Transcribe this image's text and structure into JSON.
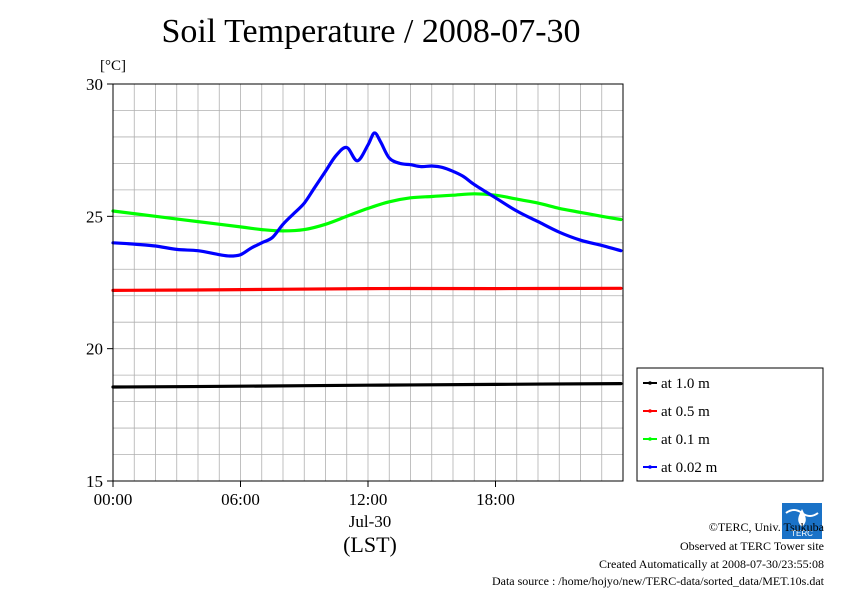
{
  "chart_data": {
    "type": "line",
    "title": "Soil Temperature / 2008-07-30",
    "ylabel": "[°C]",
    "xlabel": "(LST)",
    "date_label": "Jul-30",
    "ylim": [
      15,
      30
    ],
    "xlim": [
      0,
      24
    ],
    "yticks": [
      15,
      20,
      25,
      30
    ],
    "xticks": [
      {
        "v": 0,
        "label": "00:00"
      },
      {
        "v": 6,
        "label": "06:00"
      },
      {
        "v": 12,
        "label": "12:00"
      },
      {
        "v": 18,
        "label": "18:00"
      }
    ],
    "grid": true,
    "legend_position": "right",
    "series": [
      {
        "name": "at 1.0 m",
        "color": "#000000",
        "x": [
          0,
          6,
          12,
          18,
          23.9
        ],
        "y": [
          18.55,
          18.58,
          18.62,
          18.65,
          18.68
        ]
      },
      {
        "name": "at 0.5 m",
        "color": "#ff0000",
        "x": [
          0,
          6,
          12,
          18,
          23.9
        ],
        "y": [
          22.2,
          22.23,
          22.27,
          22.27,
          22.28
        ]
      },
      {
        "name": "at 0.1 m",
        "color": "#00ff00",
        "x": [
          0,
          2,
          4,
          6,
          7,
          8,
          9,
          10,
          11,
          12,
          13,
          14,
          15,
          16,
          17,
          18,
          19,
          20,
          21,
          22,
          23,
          23.9
        ],
        "y": [
          25.2,
          25.0,
          24.8,
          24.6,
          24.5,
          24.45,
          24.5,
          24.7,
          25.0,
          25.3,
          25.55,
          25.7,
          25.75,
          25.8,
          25.85,
          25.8,
          25.65,
          25.5,
          25.3,
          25.15,
          25.0,
          24.88
        ]
      },
      {
        "name": "at 0.02 m",
        "color": "#0000ff",
        "x": [
          0,
          1,
          2,
          3,
          4,
          5,
          5.5,
          6,
          6.5,
          7,
          7.5,
          8,
          8.5,
          9,
          9.5,
          10,
          10.5,
          11,
          11.5,
          12,
          12.3,
          12.6,
          13,
          13.5,
          14,
          14.5,
          15,
          15.5,
          16,
          16.5,
          17,
          18,
          19,
          20,
          21,
          22,
          23,
          23.9
        ],
        "y": [
          24.0,
          23.95,
          23.88,
          23.75,
          23.7,
          23.55,
          23.5,
          23.55,
          23.8,
          24.0,
          24.2,
          24.7,
          25.1,
          25.5,
          26.1,
          26.7,
          27.3,
          27.6,
          27.1,
          27.7,
          28.15,
          27.8,
          27.2,
          27.0,
          26.95,
          26.88,
          26.9,
          26.85,
          26.7,
          26.5,
          26.2,
          25.7,
          25.2,
          24.8,
          24.4,
          24.1,
          23.9,
          23.7
        ]
      }
    ]
  },
  "footer": {
    "copyright": "©TERC, Univ. Tsukuba",
    "observed": "Observed at TERC Tower site",
    "created": "Created Automatically at 2008-07-30/23:55:08",
    "source": "Data source : /home/hojyo/new/TERC-data/sorted_data/MET.10s.dat",
    "logo_text": "TERC"
  }
}
